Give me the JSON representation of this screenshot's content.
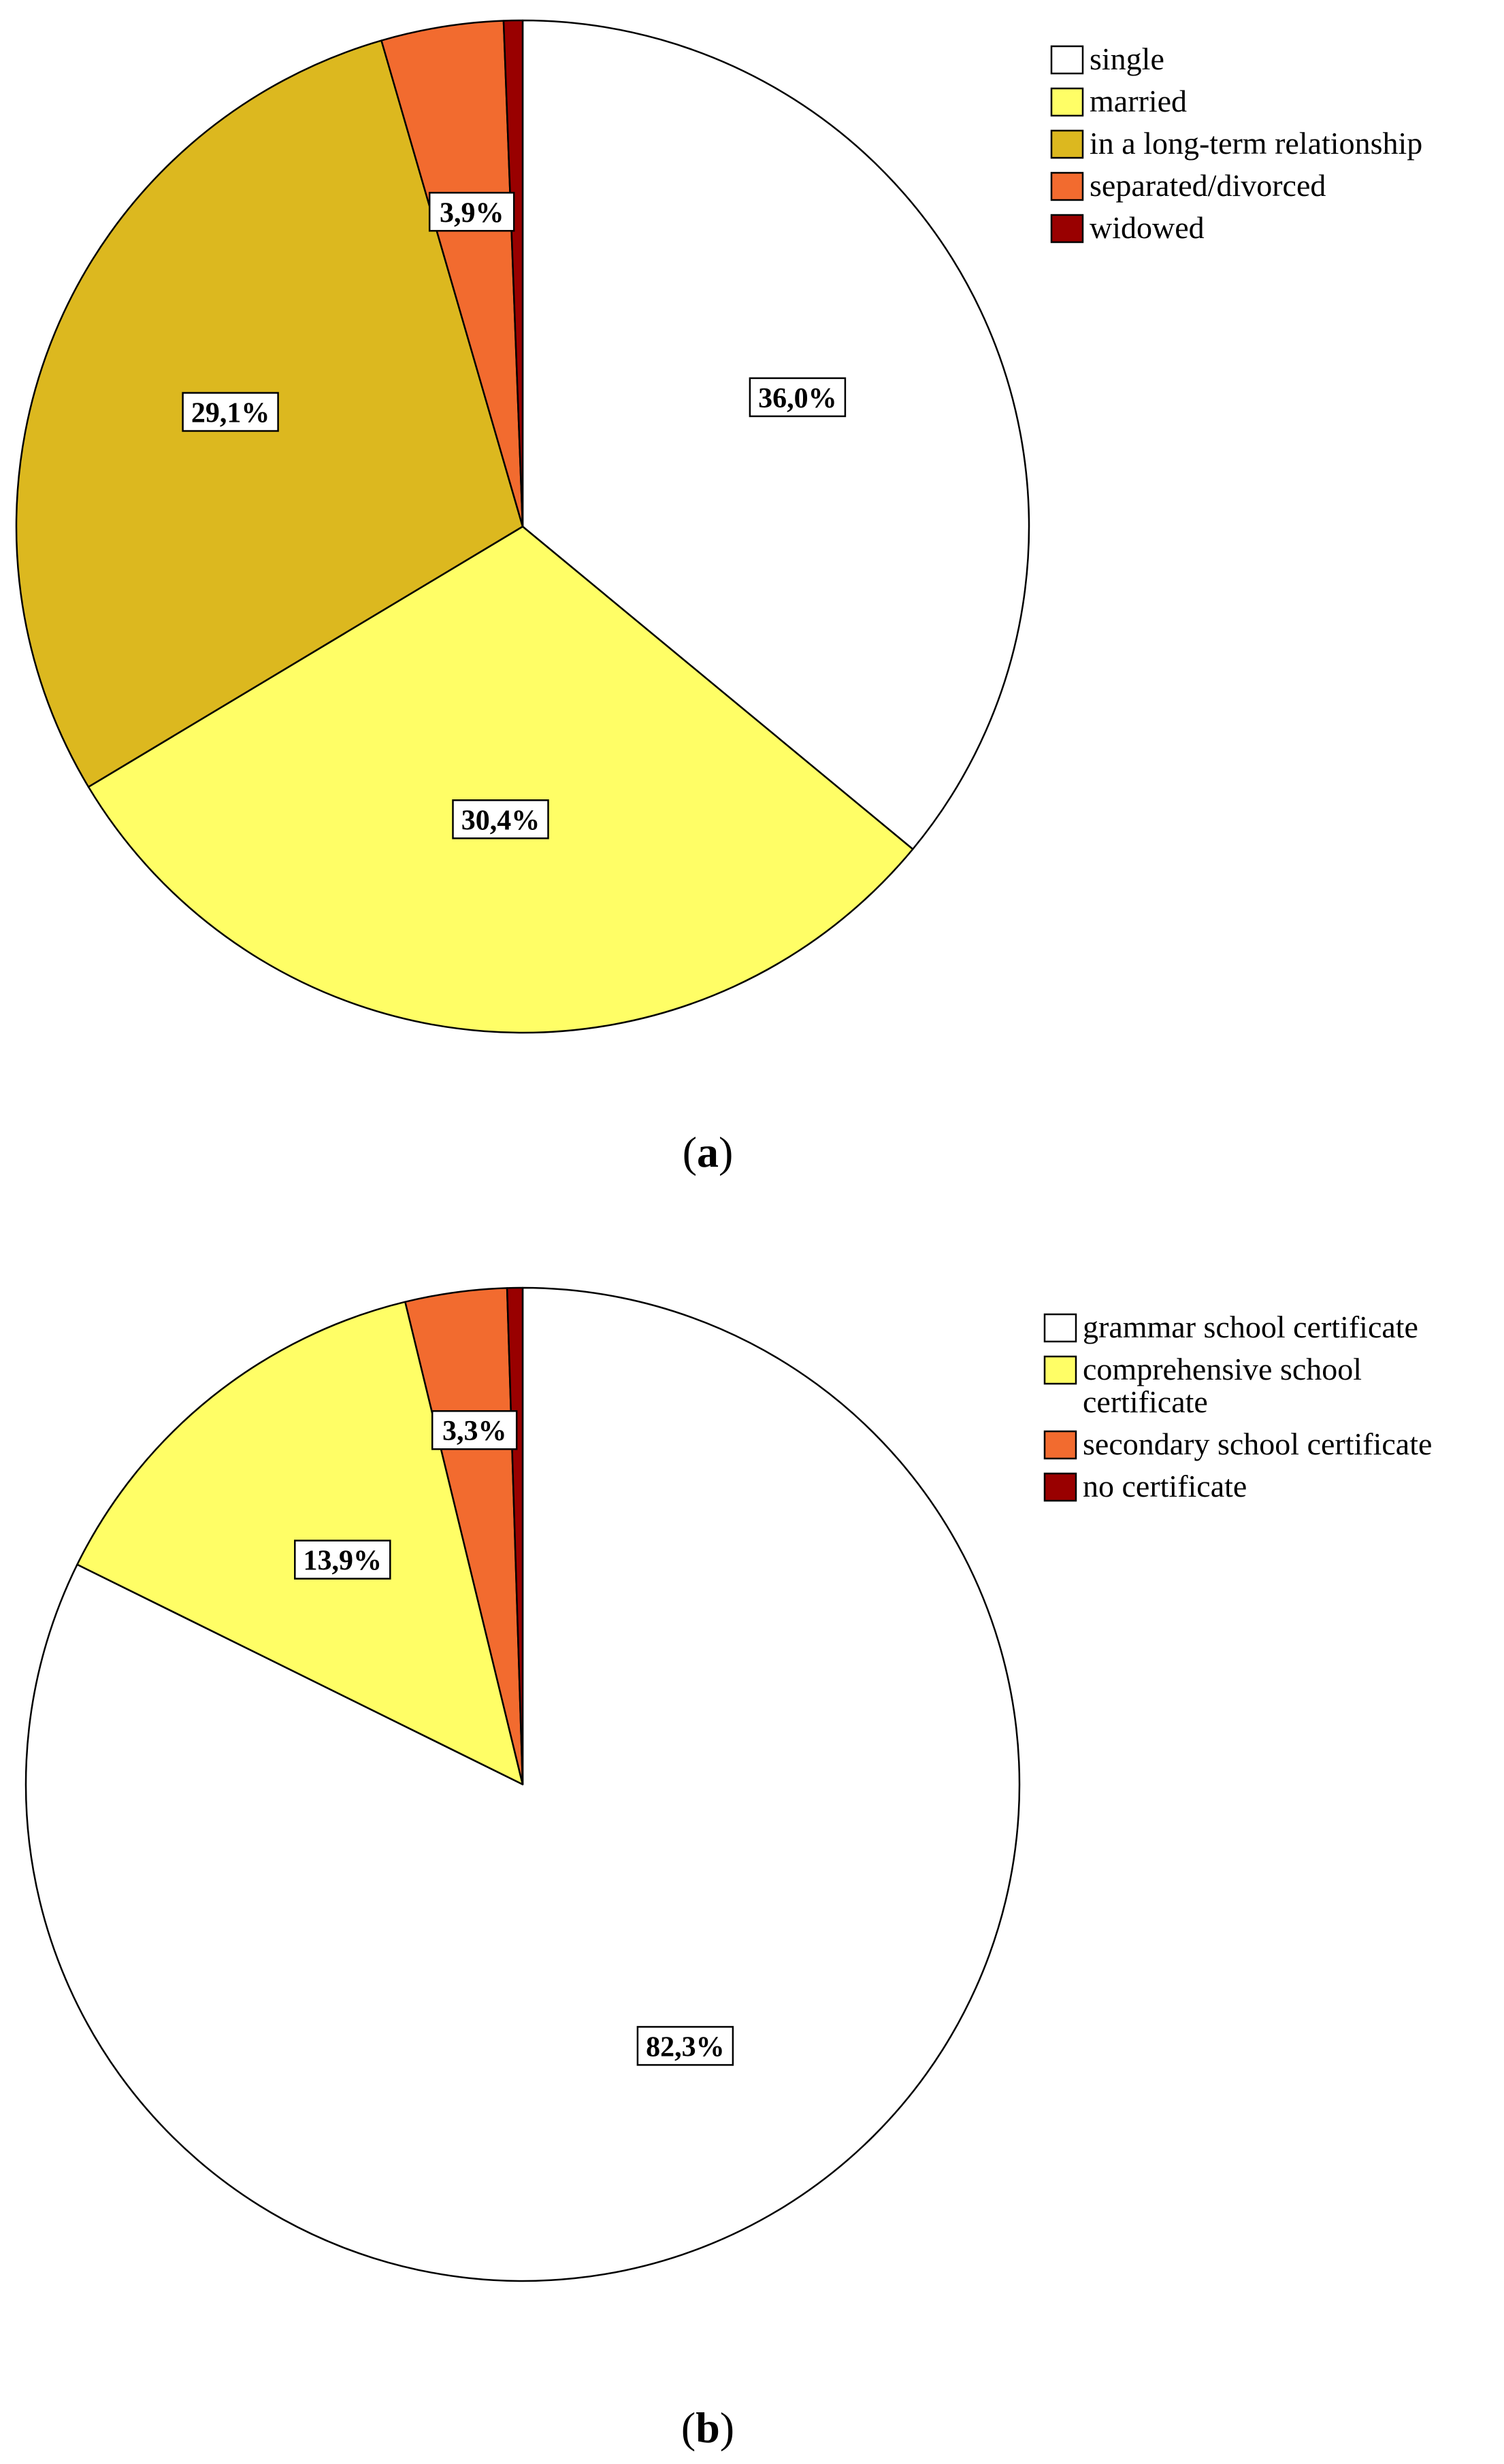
{
  "chart_data": [
    {
      "type": "pie",
      "panel_label": "(a)",
      "panel_letter": "a",
      "categories": [
        "single",
        "married",
        "in a long-term relationship",
        "separated/divorced",
        "widowed"
      ],
      "values": [
        36.0,
        30.4,
        29.1,
        3.9,
        0.6
      ],
      "data_labels": [
        "36,0%",
        "30,4%",
        "29,1%",
        "3,9%",
        ""
      ],
      "colors": [
        "#ffffff",
        "#fffe66",
        "#dcb81f",
        "#f26b2f",
        "#990000"
      ],
      "start_angle_deg": 0,
      "direction": "clockwise",
      "legend_position": "top-right"
    },
    {
      "type": "pie",
      "panel_label": "(b)",
      "panel_letter": "b",
      "categories": [
        "grammar school certificate",
        "comprehensive school certificate",
        "secondary school certificate",
        "no certificate"
      ],
      "legend_lines": [
        [
          "grammar school certificate"
        ],
        [
          "comprehensive school",
          "certificate"
        ],
        [
          "secondary school certificate"
        ],
        [
          "no certificate"
        ]
      ],
      "values": [
        82.3,
        13.9,
        3.3,
        0.5
      ],
      "data_labels": [
        "82,3%",
        "13,9%",
        "3,3%",
        ""
      ],
      "colors": [
        "#ffffff",
        "#fffe66",
        "#f26b2f",
        "#990000"
      ],
      "start_angle_deg": 0,
      "direction": "clockwise",
      "legend_position": "top-right"
    }
  ]
}
